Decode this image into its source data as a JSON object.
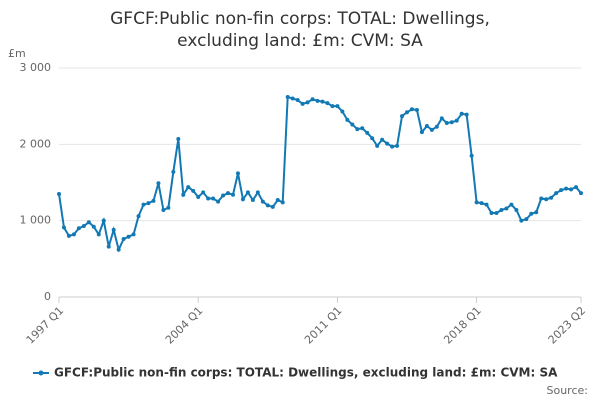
{
  "chart_data": {
    "type": "line",
    "title": "GFCF:Public non-fin corps: TOTAL: Dwellings, excluding land: £m: CVM: SA",
    "y_label": "£m",
    "source": "Source:",
    "categories": [
      "1997 Q1",
      null,
      null,
      null,
      null,
      null,
      null,
      null,
      null,
      null,
      null,
      null,
      null,
      null,
      null,
      null,
      null,
      null,
      null,
      null,
      null,
      null,
      null,
      null,
      null,
      null,
      null,
      null,
      "2004 Q1",
      null,
      null,
      null,
      null,
      null,
      null,
      null,
      null,
      null,
      null,
      null,
      null,
      null,
      null,
      null,
      null,
      null,
      null,
      null,
      null,
      null,
      null,
      null,
      null,
      null,
      null,
      null,
      "2011 Q1",
      null,
      null,
      null,
      null,
      null,
      null,
      null,
      null,
      null,
      null,
      null,
      null,
      null,
      null,
      null,
      null,
      null,
      null,
      null,
      null,
      null,
      null,
      null,
      null,
      null,
      null,
      null,
      "2018 Q1",
      null,
      null,
      null,
      null,
      null,
      null,
      null,
      null,
      null,
      null,
      null,
      null,
      null,
      null,
      null,
      null,
      null,
      null,
      null,
      null,
      "2023 Q2"
    ],
    "series": [
      {
        "name": "GFCF:Public non-fin corps: TOTAL: Dwellings, excluding land: £m: CVM: SA",
        "color": "#1279b4",
        "values": [
          1350,
          910,
          800,
          820,
          900,
          930,
          980,
          920,
          820,
          1000,
          660,
          880,
          620,
          760,
          790,
          820,
          1060,
          1210,
          1230,
          1260,
          1490,
          1140,
          1170,
          1640,
          2070,
          1340,
          1440,
          1390,
          1310,
          1370,
          1290,
          1290,
          1250,
          1330,
          1360,
          1340,
          1620,
          1280,
          1370,
          1270,
          1370,
          1250,
          1200,
          1180,
          1270,
          1240,
          2620,
          2600,
          2580,
          2530,
          2550,
          2590,
          2570,
          2560,
          2540,
          2500,
          2500,
          2430,
          2320,
          2260,
          2200,
          2210,
          2150,
          2080,
          1980,
          2060,
          2010,
          1970,
          1980,
          2370,
          2420,
          2460,
          2450,
          2160,
          2240,
          2190,
          2230,
          2340,
          2280,
          2290,
          2310,
          2400,
          2390,
          1850,
          1240,
          1230,
          1210,
          1100,
          1100,
          1140,
          1160,
          1210,
          1140,
          1000,
          1020,
          1090,
          1110,
          1290,
          1280,
          1300,
          1360,
          1400,
          1420,
          1410,
          1440,
          1360
        ]
      }
    ],
    "ylim": [
      0,
      3000
    ],
    "yticks": [
      0,
      {
        "value": 1000,
        "label": "1 000"
      },
      {
        "value": 2000,
        "label": "2 000"
      },
      {
        "value": 3000,
        "label": "3 000"
      }
    ],
    "grid": true
  }
}
